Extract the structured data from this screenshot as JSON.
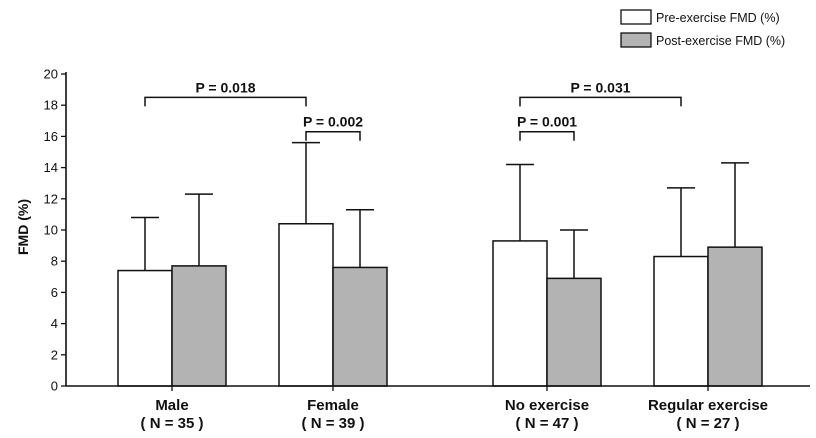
{
  "chart_data": {
    "type": "bar",
    "ylabel": "FMD (%)",
    "ylim": [
      0,
      20
    ],
    "yticks": [
      0,
      2,
      4,
      6,
      8,
      10,
      12,
      14,
      16,
      18,
      20
    ],
    "grid": false,
    "legend_position": "top-right",
    "categories": [
      {
        "name": "Male",
        "n": "( N = 35 )"
      },
      {
        "name": "Female",
        "n": "( N = 39 )"
      },
      {
        "name": "No exercise",
        "n": "( N = 47 )"
      },
      {
        "name": "Regular exercise",
        "n": "( N = 27 )"
      }
    ],
    "series": [
      {
        "name": "Pre-exercise FMD (%)",
        "color": "#ffffff",
        "values": [
          7.4,
          10.4,
          9.3,
          8.3
        ],
        "error_upper": [
          10.8,
          15.6,
          14.2,
          12.7
        ]
      },
      {
        "name": "Post-exercise FMD (%)",
        "color": "#b3b3b3",
        "values": [
          7.7,
          7.6,
          6.9,
          8.9
        ],
        "error_upper": [
          12.3,
          11.3,
          10.0,
          14.3
        ]
      }
    ],
    "annotations": [
      {
        "text": "P = 0.018",
        "from": {
          "category": 0,
          "series": 0
        },
        "to": {
          "category": 1,
          "series": 0
        },
        "y": 18.5
      },
      {
        "text": "P = 0.002",
        "from": {
          "category": 1,
          "series": 0
        },
        "to": {
          "category": 1,
          "series": 1
        },
        "y": 16.3
      },
      {
        "text": "P = 0.001",
        "from": {
          "category": 2,
          "series": 0
        },
        "to": {
          "category": 2,
          "series": 1
        },
        "y": 16.3
      },
      {
        "text": "P = 0.031",
        "from": {
          "category": 2,
          "series": 0
        },
        "to": {
          "category": 3,
          "series": 0
        },
        "y": 18.5
      }
    ]
  }
}
